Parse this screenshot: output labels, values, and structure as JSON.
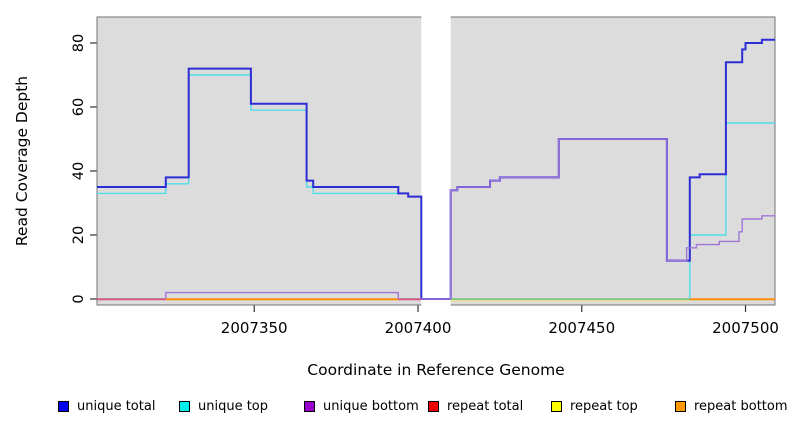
{
  "chart_data": {
    "type": "line",
    "style": "step",
    "title": "",
    "xlabel": "Coordinate in Reference Genome",
    "ylabel": "Read Coverage Depth",
    "xlim": [
      2007302,
      2007509
    ],
    "ylim": [
      0,
      88
    ],
    "x_ticks": [
      2007350,
      2007400,
      2007450,
      2007500
    ],
    "y_ticks": [
      0,
      20,
      40,
      60,
      80
    ],
    "grid": "off",
    "panel_bg": "#dcdcdc",
    "panel_border": "#737373",
    "data_gap": {
      "from": 2007401,
      "to": 2007410,
      "color": "#ffffff"
    },
    "series": [
      {
        "name": "unique total",
        "color": "#2d2dd6",
        "width": 2,
        "points": [
          [
            2007302,
            35
          ],
          [
            2007323,
            38
          ],
          [
            2007330,
            72
          ],
          [
            2007349,
            61
          ],
          [
            2007366,
            37
          ],
          [
            2007368,
            35
          ],
          [
            2007394,
            33
          ],
          [
            2007397,
            32
          ],
          [
            2007401,
            0
          ],
          [
            2007410,
            34
          ],
          [
            2007412,
            35
          ],
          [
            2007422,
            37
          ],
          [
            2007425,
            38
          ],
          [
            2007443,
            50
          ],
          [
            2007476,
            12
          ],
          [
            2007483,
            38
          ],
          [
            2007486,
            39
          ],
          [
            2007494,
            74
          ],
          [
            2007499,
            78
          ],
          [
            2007500,
            80
          ],
          [
            2007505,
            81
          ],
          [
            2007509,
            81
          ]
        ]
      },
      {
        "name": "unique top",
        "color": "#4fdde8",
        "width": 1.4,
        "points": [
          [
            2007302,
            33
          ],
          [
            2007323,
            36
          ],
          [
            2007330,
            70
          ],
          [
            2007349,
            59
          ],
          [
            2007366,
            35
          ],
          [
            2007368,
            33
          ],
          [
            2007397,
            32
          ],
          [
            2007401,
            0
          ],
          [
            2007483,
            20
          ],
          [
            2007494,
            55
          ],
          [
            2007509,
            55
          ]
        ]
      },
      {
        "name": "unique bottom",
        "color": "#a175d8",
        "width": 1.4,
        "points": [
          [
            2007302,
            0
          ],
          [
            2007323,
            2
          ],
          [
            2007394,
            0
          ],
          [
            2007410,
            34
          ],
          [
            2007412,
            35
          ],
          [
            2007422,
            37
          ],
          [
            2007425,
            38
          ],
          [
            2007443,
            50
          ],
          [
            2007476,
            12
          ],
          [
            2007482,
            16
          ],
          [
            2007485,
            17
          ],
          [
            2007492,
            18
          ],
          [
            2007498,
            21
          ],
          [
            2007499,
            25
          ],
          [
            2007505,
            26
          ],
          [
            2007509,
            26
          ]
        ]
      },
      {
        "name": "repeat total",
        "color": "#dd4466",
        "width": 1.2,
        "points": [
          [
            2007302,
            0
          ],
          [
            2007509,
            0
          ]
        ]
      },
      {
        "name": "repeat top",
        "color": "#eeee88",
        "width": 1.2,
        "points": [
          [
            2007302,
            0
          ],
          [
            2007509,
            0
          ]
        ]
      },
      {
        "name": "repeat bottom",
        "color": "#ff8c00",
        "width": 1.2,
        "points": [
          [
            2007302,
            0
          ],
          [
            2007509,
            0
          ]
        ]
      }
    ],
    "draw_order": [
      3,
      4,
      5,
      1,
      0,
      2
    ],
    "baseline_segments": [
      {
        "from": 2007302,
        "to": 2007323,
        "color": "#dd5577",
        "dy": 0.5
      },
      {
        "from": 2007323,
        "to": 2007394,
        "color": "#ff8c00",
        "dy": 0.5
      },
      {
        "from": 2007394,
        "to": 2007401,
        "color": "#dd5577",
        "dy": 0.5
      },
      {
        "from": 2007410,
        "to": 2007483,
        "color": "#eedd99",
        "dy": 1.8
      },
      {
        "from": 2007410,
        "to": 2007483,
        "color": "#7ec87e",
        "dy": 0.3
      },
      {
        "from": 2007483,
        "to": 2007509,
        "color": "#ff8c00",
        "dy": 0.5
      }
    ],
    "legend": {
      "position": "bottom",
      "items": [
        {
          "label": "unique total",
          "swatch": "#0000ee"
        },
        {
          "label": "unique top",
          "swatch": "#00eeee"
        },
        {
          "label": "unique bottom",
          "swatch": "#9900cc"
        },
        {
          "label": "repeat total",
          "swatch": "#ee0000"
        },
        {
          "label": "repeat top",
          "swatch": "#ffff00"
        },
        {
          "label": "repeat bottom",
          "swatch": "#ff9900"
        }
      ]
    }
  }
}
